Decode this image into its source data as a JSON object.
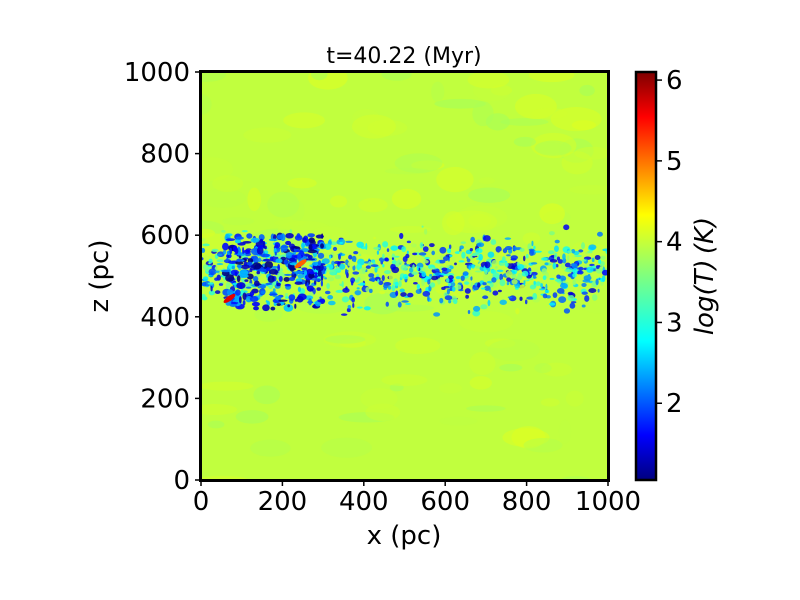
{
  "chart_data": {
    "type": "heatmap",
    "title": "t=40.22 (Myr)",
    "xlabel": "x (pc)",
    "ylabel": "z (pc)",
    "xlim": [
      0,
      1000
    ],
    "ylim": [
      0,
      1000
    ],
    "xticks": [
      0,
      200,
      400,
      600,
      800,
      1000
    ],
    "yticks": [
      0,
      200,
      400,
      600,
      800,
      1000
    ],
    "colorbar": {
      "label": "log(T) (K)",
      "range": [
        1.05,
        6.1
      ],
      "ticks": [
        2,
        3,
        4,
        5,
        6
      ],
      "colormap": "jet"
    },
    "background_value": 3.9,
    "features": [
      {
        "name": "cold-gas-midplane-band",
        "z_center": 510,
        "z_halfwidth": 90,
        "x_range": [
          0,
          1000
        ],
        "typical_value": 2.7
      },
      {
        "name": "cold-clumps-left",
        "x_range": [
          60,
          300
        ],
        "z_range": [
          420,
          600
        ],
        "typical_value": 1.5
      },
      {
        "name": "hot-spot",
        "x": 70,
        "z": 445,
        "value": 5.6
      },
      {
        "name": "hot-spot",
        "x": 245,
        "z": 530,
        "value": 5.0
      }
    ],
    "grid": false,
    "legend": "none"
  }
}
